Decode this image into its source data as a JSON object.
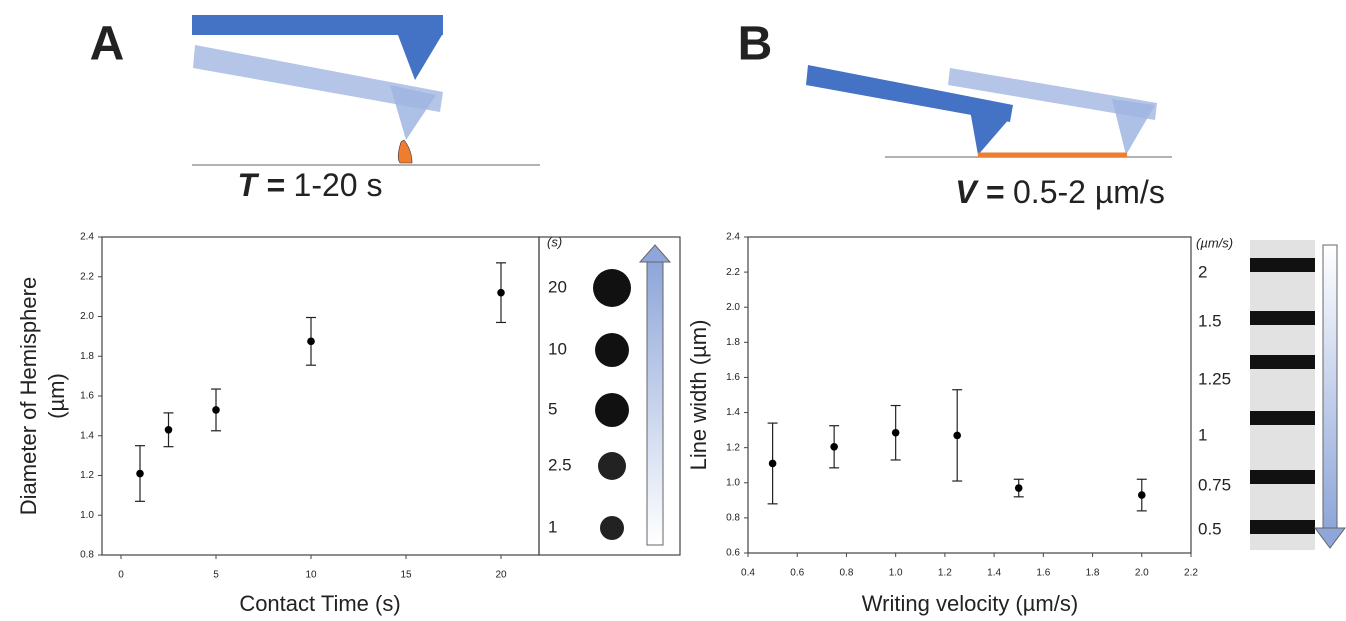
{
  "chart_data": [
    {
      "type": "scatter",
      "panel_label": "A",
      "annotation": [
        "T =",
        "1-20 s"
      ],
      "x_label": "Contact Time (s)",
      "y_label": [
        "Diameter of Hemisphere",
        "(µm)"
      ],
      "x": [
        1,
        2.5,
        5,
        10,
        20
      ],
      "values": [
        1.21,
        1.43,
        1.53,
        1.875,
        2.12
      ],
      "errors": [
        0.14,
        0.085,
        0.105,
        0.12,
        0.15
      ],
      "color": "#000000",
      "xlim": [
        -1,
        22
      ],
      "xticks": [
        0,
        5,
        10,
        15,
        20
      ],
      "ylim": [
        0.8,
        2.4
      ],
      "yticks": [
        0.8,
        {
          "value": 1,
          "label": "1.0"
        },
        1.2,
        1.4,
        1.6,
        1.8,
        {
          "value": 2,
          "label": "2.0"
        },
        2.2,
        2.4
      ],
      "inset": {
        "unit": "(s)",
        "labels": [
          "20",
          "10",
          "5",
          "2.5",
          "1"
        ]
      }
    },
    {
      "type": "scatter",
      "panel_label": "B",
      "annotation": [
        "V =",
        "0.5-2 µm/s"
      ],
      "x_label": "Writing velocity (µm/s)",
      "y_label": [
        "Line width (µm)"
      ],
      "x": [
        0.5,
        0.75,
        1.0,
        1.25,
        1.5,
        2.0
      ],
      "values": [
        1.11,
        1.205,
        1.285,
        1.27,
        0.97,
        0.93
      ],
      "errors": [
        0.23,
        0.12,
        0.155,
        0.26,
        0.05,
        0.09
      ],
      "color": "#000000",
      "xlim": [
        0.4,
        2.2
      ],
      "xticks": [
        0.4,
        0.6,
        0.8,
        {
          "value": 1,
          "label": "1.0"
        },
        1.2,
        1.4,
        1.6,
        1.8,
        {
          "value": 2,
          "label": "2.0"
        },
        2.2
      ],
      "ylim": [
        0.6,
        2.4
      ],
      "yticks": [
        0.6,
        0.8,
        {
          "value": 1,
          "label": "1.0"
        },
        1.2,
        1.4,
        1.6,
        1.8,
        {
          "value": 2,
          "label": "2.0"
        },
        2.2,
        2.4
      ],
      "inset": {
        "unit": "(µm/s)",
        "labels": [
          "2",
          "1.5",
          "1.25",
          "1",
          "0.75",
          "0.5"
        ]
      }
    }
  ]
}
